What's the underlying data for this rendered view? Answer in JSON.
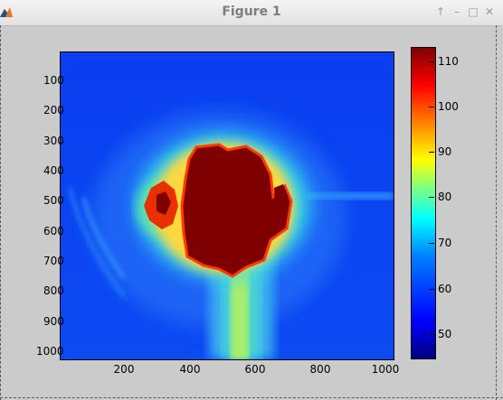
{
  "window": {
    "title": "Figure 1",
    "controls": [
      "↑",
      "–",
      "□",
      "✕"
    ]
  },
  "plot": {
    "y_ticks": [
      "100",
      "200",
      "300",
      "400",
      "500",
      "600",
      "700",
      "800",
      "900",
      "1000"
    ],
    "x_ticks": [
      "200",
      "400",
      "600",
      "800",
      "1000"
    ],
    "colorbar_ticks": [
      "110",
      "100",
      "90",
      "80",
      "70",
      "60",
      "50"
    ],
    "colormap": "jet"
  }
}
